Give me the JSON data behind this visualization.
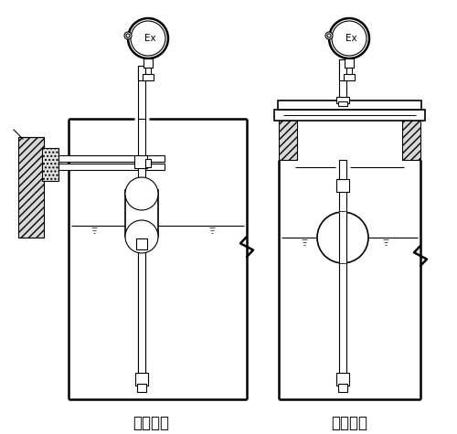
{
  "title_left": "架装固定",
  "title_right": "法兰固定",
  "bg_color": "#ffffff",
  "line_color": "#000000",
  "font_size_label": 12,
  "fig_width": 5.0,
  "fig_height": 4.75
}
